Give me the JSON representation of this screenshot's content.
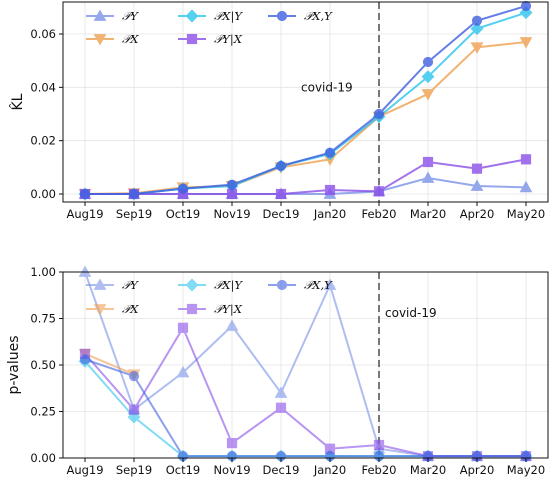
{
  "chart_data": [
    {
      "type": "line",
      "categories": [
        "Aug19",
        "Sep19",
        "Oct19",
        "Nov19",
        "Dec19",
        "Jan20",
        "Feb20",
        "Mar20",
        "Apr20",
        "May20"
      ],
      "ylabel": "K̂L",
      "ylim": [
        -0.003,
        0.072
      ],
      "yticks": [
        "0.00",
        "0.02",
        "0.04",
        "0.06"
      ],
      "ytick_values": [
        0,
        0.02,
        0.04,
        0.06
      ],
      "grid": true,
      "legend_placement": "top-left",
      "annotation": {
        "text": "covid-19",
        "at_category": "Feb20",
        "y": 0.04
      },
      "vline_category": "Feb20",
      "series": [
        {
          "name": "𝒫Y",
          "color": "#7b93e8",
          "marker": "triangle",
          "values": [
            0.0,
            0.0,
            0.0,
            0.0,
            0.0,
            0.0,
            0.001,
            0.006,
            0.003,
            0.0025
          ]
        },
        {
          "name": "𝒫X",
          "color": "#f0a050",
          "marker": "triangle-down",
          "values": [
            0.0,
            0.0003,
            0.0025,
            0.003,
            0.01,
            0.013,
            0.029,
            0.0375,
            0.055,
            0.057
          ]
        },
        {
          "name": "𝒫X|Y",
          "color": "#2ec4ee",
          "marker": "diamond",
          "values": [
            0.0,
            0.0,
            0.002,
            0.003,
            0.0105,
            0.015,
            0.029,
            0.044,
            0.062,
            0.068
          ]
        },
        {
          "name": "𝒫Y|X",
          "color": "#8a4fe8",
          "marker": "square",
          "values": [
            0.0,
            0.0,
            0.0,
            0.0,
            0.0,
            0.0015,
            0.001,
            0.012,
            0.0095,
            0.013
          ]
        },
        {
          "name": "𝒫X,Y",
          "color": "#4060e0",
          "marker": "circle",
          "values": [
            0.0,
            0.0,
            0.002,
            0.0035,
            0.0105,
            0.0155,
            0.03,
            0.0495,
            0.065,
            0.0705
          ]
        }
      ]
    },
    {
      "type": "line",
      "categories": [
        "Aug19",
        "Sep19",
        "Oct19",
        "Nov19",
        "Dec19",
        "Jan20",
        "Feb20",
        "Mar20",
        "Apr20",
        "May20"
      ],
      "ylabel": "p-values",
      "ylim": [
        0,
        1.0
      ],
      "yticks": [
        "0.00",
        "0.25",
        "0.50",
        "0.75",
        "1.00"
      ],
      "ytick_values": [
        0,
        0.25,
        0.5,
        0.75,
        1.0
      ],
      "grid": true,
      "legend_placement": "top-left",
      "annotation": {
        "text": "covid-19",
        "at_category": "Feb20",
        "y": 0.78
      },
      "vline_category": "Feb20",
      "series": [
        {
          "name": "𝒫Y",
          "color": "#7b93e8",
          "marker": "triangle",
          "values": [
            1.0,
            0.26,
            0.46,
            0.71,
            0.35,
            0.93,
            0.05,
            0.01,
            0.01,
            0.01
          ]
        },
        {
          "name": "𝒫X",
          "color": "#f0a050",
          "marker": "triangle-down",
          "values": [
            0.56,
            0.45,
            null,
            null,
            null,
            null,
            null,
            null,
            null,
            null
          ]
        },
        {
          "name": "𝒫X|Y",
          "color": "#2ec4ee",
          "marker": "diamond",
          "values": [
            0.52,
            0.22,
            0.01,
            0.01,
            0.01,
            0.01,
            0.01,
            0.01,
            0.01,
            0.01
          ]
        },
        {
          "name": "𝒫Y|X",
          "color": "#8a4fe8",
          "marker": "square",
          "values": [
            0.56,
            0.26,
            0.7,
            0.08,
            0.27,
            0.05,
            0.07,
            0.01,
            0.01,
            0.01
          ]
        },
        {
          "name": "𝒫X,Y",
          "color": "#4060e0",
          "marker": "circle",
          "values": [
            0.53,
            0.44,
            0.01,
            0.01,
            0.01,
            0.01,
            0.01,
            0.01,
            0.01,
            0.01
          ]
        }
      ]
    }
  ]
}
